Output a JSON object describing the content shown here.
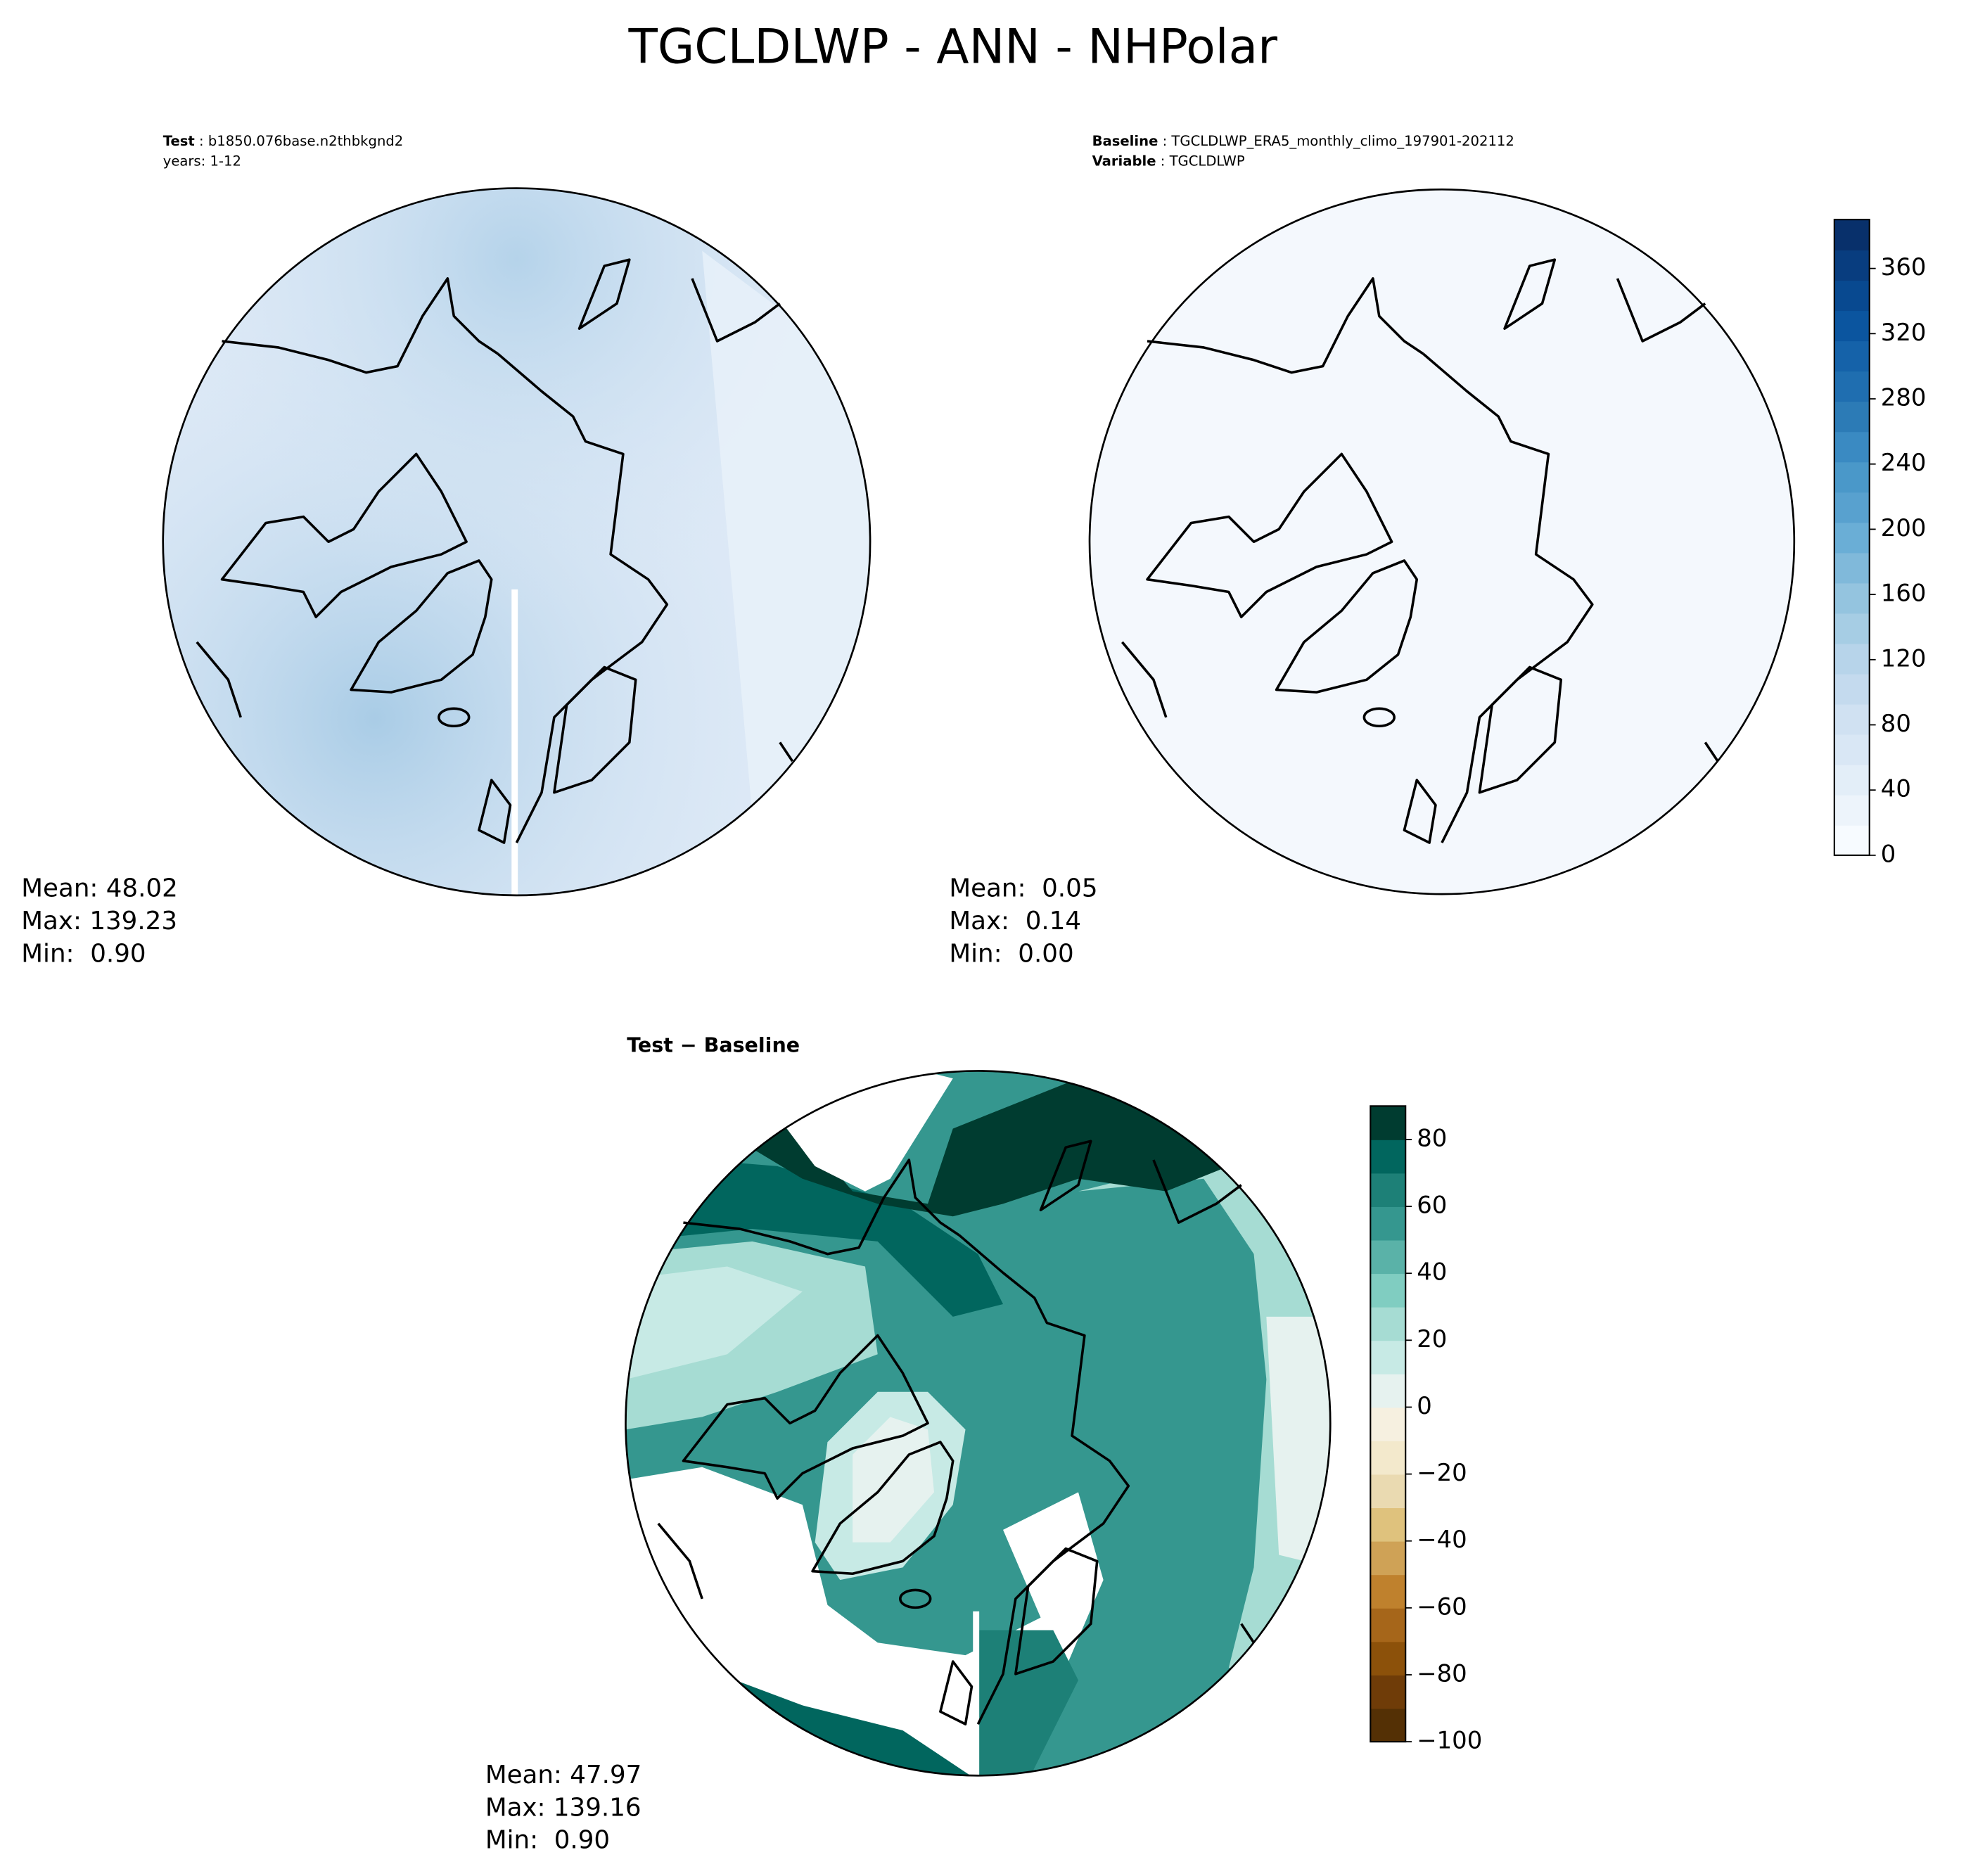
{
  "title": "TGCLDLWP - ANN - NHPolar",
  "panels": [
    {
      "header": [
        {
          "label": "Test",
          "text": " : b1850.076base.n2thbkgnd2"
        },
        {
          "label": "",
          "text": "years: 1-12"
        }
      ],
      "stats": [
        "Mean: 48.02",
        "Max: 139.23",
        "Min:  0.90"
      ]
    },
    {
      "header": [
        {
          "label": "Baseline",
          "text": " : TGCLDLWP_ERA5_monthly_climo_197901-202112"
        },
        {
          "label": "Variable",
          "text": " : TGCLDLWP"
        }
      ],
      "stats": [
        "Mean:  0.05",
        "Max:  0.14",
        "Min:  0.00"
      ]
    },
    {
      "title": "Test − Baseline",
      "stats": [
        "Mean: 47.97",
        "Max: 139.16",
        "Min:  0.90"
      ]
    }
  ],
  "colorbars": [
    {
      "ylim": [
        0,
        390
      ],
      "yticks": [
        0,
        40,
        80,
        120,
        160,
        200,
        240,
        280,
        320,
        360
      ],
      "colors": [
        "#f7fbff",
        "#edf4fb",
        "#e3eef8",
        "#d9e7f5",
        "#d0e1f2",
        "#c4daee",
        "#b7d4ea",
        "#a6cde4",
        "#94c4df",
        "#80b9da",
        "#6aaed6",
        "#58a1cf",
        "#4a98c9",
        "#3a8ac2",
        "#2c7bb6",
        "#1f6eb0",
        "#1562a9",
        "#0b559f",
        "#084990",
        "#083d7f",
        "#08306b"
      ]
    },
    {
      "ylim": [
        -100,
        90
      ],
      "yticks": [
        {
          "value": -100,
          "label": "−100"
        },
        {
          "value": -80,
          "label": "−80"
        },
        {
          "value": -60,
          "label": "−60"
        },
        {
          "value": -40,
          "label": "−40"
        },
        {
          "value": -20,
          "label": "−20"
        },
        0,
        20,
        40,
        60,
        80
      ],
      "colors": [
        "#543005",
        "#6f3c08",
        "#8c510a",
        "#a6661a",
        "#bf812d",
        "#cfa256",
        "#dfc27d",
        "#eadab1",
        "#f3e9cc",
        "#f6f0e0",
        "#e6f2ef",
        "#c7eae5",
        "#a6dcd3",
        "#80cdc1",
        "#5ab2a8",
        "#35978f",
        "#1d8077",
        "#01665e",
        "#003c30"
      ]
    }
  ]
}
